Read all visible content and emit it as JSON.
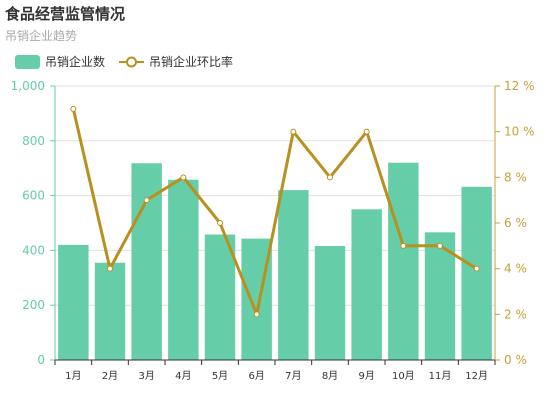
{
  "header": {
    "title": "食品经营监管情况",
    "subtitle": "吊销企业趋势"
  },
  "legend": {
    "bar_label": "吊销企业数",
    "line_label": "吊销企业环比率"
  },
  "colors": {
    "bar": "#66cda9",
    "line": "#b8901d",
    "point_fill": "#ffffff",
    "grid": "#e0e0e0",
    "left_axis": "#66cda9",
    "right_axis": "#c7a23a",
    "x_axis": "#333333"
  },
  "chart_data": {
    "type": "bar",
    "title": "食品经营监管情况",
    "subtitle": "吊销企业趋势",
    "categories": [
      "1月",
      "2月",
      "3月",
      "4月",
      "5月",
      "6月",
      "7月",
      "8月",
      "9月",
      "10月",
      "11月",
      "12月"
    ],
    "series": [
      {
        "name": "吊销企业数",
        "type": "bar",
        "axis": "left",
        "values": [
          420,
          355,
          718,
          658,
          458,
          443,
          620,
          416,
          550,
          720,
          466,
          632
        ]
      },
      {
        "name": "吊销企业环比率",
        "type": "line",
        "axis": "right",
        "values": [
          11,
          4,
          7,
          8,
          6,
          2,
          10,
          8,
          10,
          5,
          5,
          4
        ]
      }
    ],
    "y_left": {
      "ylim": [
        0,
        1000
      ],
      "ticks": [
        "0",
        "200",
        "400",
        "600",
        "800",
        "1,000"
      ]
    },
    "y_right": {
      "ylim": [
        0,
        12
      ],
      "ticks": [
        "0 %",
        "2 %",
        "4 %",
        "6 %",
        "8 %",
        "10 %",
        "12 %"
      ]
    },
    "grid": true,
    "legend_position": "top-left"
  }
}
